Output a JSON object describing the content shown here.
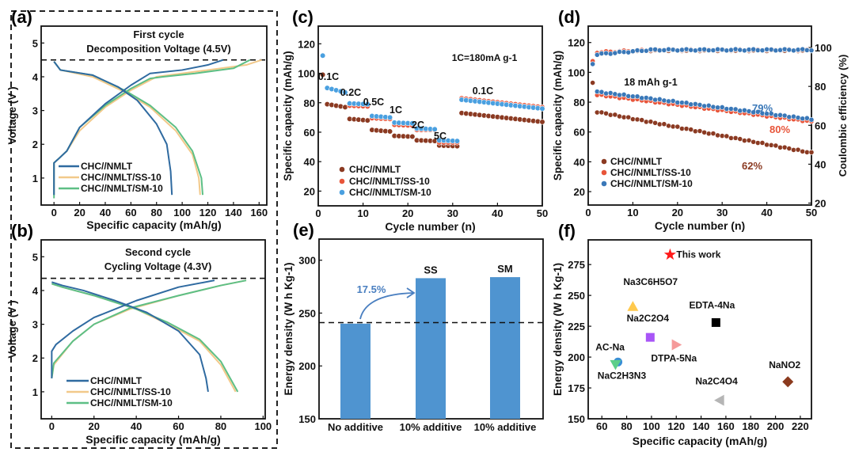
{
  "colors": {
    "nmlt_line": "#2f6aa0",
    "ss_line": "#f2c98a",
    "sm_line": "#5dbf85",
    "nmlt_dot": "#8b3a22",
    "ss_dot": "#e8553a",
    "sm_dot_c": "#4aa0e0",
    "sm_dot_d": "#3a78b8",
    "bar": "#4f94d0",
    "annot_blue": "#4a7fc0"
  },
  "chart_data": [
    {
      "panel": "(a)",
      "type": "line",
      "title": "First cycle",
      "subtitle": "Decomposition Voltage (4.5V)",
      "xlabel": "Specific capacity (mAh/g)",
      "ylabel": "Voltage (V )",
      "xlim": [
        -10,
        166
      ],
      "ylim": [
        0.2,
        5.5
      ],
      "xticks": [
        0,
        20,
        40,
        60,
        80,
        100,
        120,
        140,
        160
      ],
      "yticks": [
        1,
        2,
        3,
        4,
        5
      ],
      "ref_line": 4.5,
      "legend": [
        "CHC//NMLT",
        "CHC//NMLT/SS-10",
        "CHC//NMLT/SM-10"
      ],
      "series": [
        {
          "name": "CHC//NMLT",
          "charge": [
            [
              0,
              0.5
            ],
            [
              0,
              1.45
            ],
            [
              3,
              1.55
            ],
            [
              10,
              1.8
            ],
            [
              20,
              2.5
            ],
            [
              40,
              3.2
            ],
            [
              60,
              3.75
            ],
            [
              75,
              4.1
            ],
            [
              100,
              4.2
            ],
            [
              120,
              4.35
            ],
            [
              132,
              4.5
            ]
          ],
          "discharge": [
            [
              0,
              4.45
            ],
            [
              5,
              4.2
            ],
            [
              30,
              4.05
            ],
            [
              50,
              3.7
            ],
            [
              65,
              3.3
            ],
            [
              80,
              2.6
            ],
            [
              88,
              2.0
            ],
            [
              91,
              1.2
            ],
            [
              92,
              0.5
            ]
          ]
        },
        {
          "name": "CHC//NMLT/SS-10",
          "charge": [
            [
              0,
              0.5
            ],
            [
              0,
              1.45
            ],
            [
              3,
              1.55
            ],
            [
              10,
              1.8
            ],
            [
              20,
              2.4
            ],
            [
              40,
              3.1
            ],
            [
              60,
              3.6
            ],
            [
              80,
              4.0
            ],
            [
              120,
              4.2
            ],
            [
              150,
              4.35
            ],
            [
              162,
              4.5
            ]
          ],
          "discharge": [
            [
              0,
              4.45
            ],
            [
              5,
              4.2
            ],
            [
              30,
              4.0
            ],
            [
              55,
              3.55
            ],
            [
              75,
              3.1
            ],
            [
              95,
              2.4
            ],
            [
              108,
              1.7
            ],
            [
              113,
              1.0
            ],
            [
              114,
              0.5
            ]
          ]
        },
        {
          "name": "CHC//NMLT/SM-10",
          "charge": [
            [
              0,
              0.4
            ],
            [
              0,
              1.45
            ],
            [
              3,
              1.55
            ],
            [
              10,
              1.8
            ],
            [
              20,
              2.5
            ],
            [
              40,
              3.15
            ],
            [
              60,
              3.65
            ],
            [
              75,
              3.95
            ],
            [
              85,
              4.0
            ],
            [
              110,
              4.1
            ],
            [
              140,
              4.25
            ],
            [
              153,
              4.5
            ]
          ],
          "discharge": [
            [
              0,
              4.45
            ],
            [
              5,
              4.2
            ],
            [
              30,
              4.05
            ],
            [
              55,
              3.6
            ],
            [
              75,
              3.15
            ],
            [
              95,
              2.5
            ],
            [
              108,
              1.8
            ],
            [
              115,
              1.0
            ],
            [
              116,
              0.5
            ]
          ]
        }
      ]
    },
    {
      "panel": "(b)",
      "type": "line",
      "title": "Second cycle",
      "subtitle": "Cycling Voltage (4.3V)",
      "xlabel": "Specific capacity (mAh/g)",
      "ylabel": "Voltage (V )",
      "xlim": [
        -5,
        101
      ],
      "ylim": [
        0.2,
        5.5
      ],
      "xticks": [
        0,
        20,
        40,
        60,
        80,
        100
      ],
      "yticks": [
        1,
        2,
        3,
        4,
        5
      ],
      "ref_line": 4.36,
      "legend": [
        "CHC//NMLT",
        "CHC//NMLT/SS-10",
        "CHC//NMLT/SM-10"
      ],
      "series": [
        {
          "name": "CHC//NMLT",
          "charge": [
            [
              0,
              1.4
            ],
            [
              0,
              2.2
            ],
            [
              2,
              2.4
            ],
            [
              10,
              2.8
            ],
            [
              20,
              3.2
            ],
            [
              40,
              3.7
            ],
            [
              60,
              4.1
            ],
            [
              77,
              4.3
            ]
          ],
          "discharge": [
            [
              0,
              4.25
            ],
            [
              5,
              4.15
            ],
            [
              15,
              4.0
            ],
            [
              30,
              3.7
            ],
            [
              45,
              3.35
            ],
            [
              60,
              2.8
            ],
            [
              70,
              2.1
            ],
            [
              73,
              1.4
            ],
            [
              74,
              1.0
            ]
          ]
        },
        {
          "name": "CHC//NMLT/SS-10",
          "charge": [
            [
              0,
              1.4
            ],
            [
              1,
              1.8
            ],
            [
              10,
              2.5
            ],
            [
              20,
              3.0
            ],
            [
              37,
              3.45
            ],
            [
              60,
              3.85
            ],
            [
              80,
              4.15
            ],
            [
              92,
              4.3
            ]
          ],
          "discharge": [
            [
              0,
              4.2
            ],
            [
              5,
              4.1
            ],
            [
              20,
              3.85
            ],
            [
              40,
              3.45
            ],
            [
              55,
              3.0
            ],
            [
              70,
              2.5
            ],
            [
              80,
              1.8
            ],
            [
              87,
              1.0
            ]
          ]
        },
        {
          "name": "CHC//NMLT/SM-10",
          "charge": [
            [
              0,
              1.4
            ],
            [
              1,
              1.85
            ],
            [
              10,
              2.5
            ],
            [
              20,
              3.0
            ],
            [
              37,
              3.48
            ],
            [
              60,
              3.85
            ],
            [
              80,
              4.15
            ],
            [
              92,
              4.3
            ]
          ],
          "discharge": [
            [
              0,
              4.2
            ],
            [
              5,
              4.1
            ],
            [
              20,
              3.85
            ],
            [
              40,
              3.45
            ],
            [
              55,
              3.05
            ],
            [
              70,
              2.55
            ],
            [
              80,
              1.9
            ],
            [
              88,
              1.0
            ]
          ]
        }
      ]
    },
    {
      "panel": "(c)",
      "type": "scatter",
      "xlabel": "Cycle number (n)",
      "ylabel": "Specific capacity (mAh/g)",
      "xlim": [
        0,
        50
      ],
      "ylim": [
        10,
        132
      ],
      "xticks": [
        0,
        10,
        20,
        30,
        40,
        50
      ],
      "yticks": [
        20,
        40,
        60,
        80,
        100,
        120
      ],
      "annotation": "1C=180mA g-1",
      "rate_labels": [
        {
          "text": "0.1C"
        },
        {
          "text": "0.2C"
        },
        {
          "text": "0.5C"
        },
        {
          "text": "1C"
        },
        {
          "text": "2C"
        },
        {
          "text": "5C"
        },
        {
          "text": "0.1C"
        }
      ],
      "legend": [
        "CHC//NMLT",
        "CHC//NMLT/SS-10",
        "CHC//NMLT/SM-10"
      ],
      "series": [
        {
          "name": "CHC//NMLT",
          "segments": [
            [
              1,
              1,
              99,
              99
            ],
            [
              2,
              6,
              79,
              77
            ],
            [
              7,
              11,
              69,
              68
            ],
            [
              12,
              16,
              61.5,
              60.5
            ],
            [
              17,
              21,
              57.5,
              57
            ],
            [
              22,
              26,
              54.5,
              54
            ],
            [
              27,
              31,
              51,
              50.5
            ],
            [
              32,
              50,
              73,
              67
            ]
          ]
        },
        {
          "name": "CHC//NMLT/SS-10",
          "segments": [
            [
              1,
              1,
              112,
              112
            ],
            [
              2,
              6,
              90,
              87
            ],
            [
              7,
              11,
              78,
              77.5
            ],
            [
              12,
              16,
              69.5,
              69
            ],
            [
              17,
              21,
              65,
              64.5
            ],
            [
              22,
              26,
              61.5,
              61.5
            ],
            [
              27,
              31,
              53,
              53
            ],
            [
              32,
              50,
              83,
              77
            ]
          ]
        },
        {
          "name": "CHC//NMLT/SM-10",
          "segments": [
            [
              1,
              1,
              112,
              112
            ],
            [
              2,
              6,
              90,
              87
            ],
            [
              7,
              11,
              79.5,
              79
            ],
            [
              12,
              16,
              71,
              70
            ],
            [
              17,
              21,
              66.5,
              66
            ],
            [
              22,
              26,
              62.5,
              62
            ],
            [
              27,
              31,
              54.5,
              54
            ],
            [
              32,
              50,
              82,
              76
            ]
          ]
        }
      ]
    },
    {
      "panel": "(d)",
      "type": "scatter",
      "xlabel": "Cycle number (n)",
      "ylabel": "Specific capacity (mAh/g)",
      "ylabel_right": "Coulombic efficiency (%)",
      "xlim": [
        0,
        50
      ],
      "ylim": [
        11,
        131
      ],
      "ylim_right": [
        19,
        111
      ],
      "xticks": [
        0,
        10,
        20,
        30,
        40,
        50
      ],
      "yticks": [
        20,
        40,
        60,
        80,
        100,
        120
      ],
      "yticks_right": [
        20,
        40,
        60,
        80,
        100
      ],
      "annotation": "18 mAh g-1",
      "retention": [
        {
          "text": "79%",
          "series": "CHC//NMLT/SM-10"
        },
        {
          "text": "80%",
          "series": "CHC//NMLT/SS-10"
        },
        {
          "text": "62%",
          "series": "CHC//NMLT"
        }
      ],
      "legend": [
        "CHC//NMLT",
        "CHC//NMLT/SS-10",
        "CHC//NMLT/SM-10"
      ],
      "series": [
        {
          "name": "CHC//NMLT",
          "capacity": {
            "first": 93,
            "start": 73.5,
            "end": 46
          },
          "ce": {
            "first": 93,
            "start": 97.5,
            "end": 98.5
          }
        },
        {
          "name": "CHC//NMLT/SS-10",
          "capacity": {
            "first": 93,
            "start": 85,
            "end": 67
          },
          "ce": {
            "first": 93,
            "start": 97.5,
            "end": 98.8
          }
        },
        {
          "name": "CHC//NMLT/SM-10",
          "capacity": {
            "first": 93,
            "start": 87,
            "end": 68.5
          },
          "ce": {
            "first": 91.5,
            "start": 96.5,
            "end": 98.8
          }
        }
      ]
    },
    {
      "panel": "(e)",
      "type": "bar",
      "ylabel": "Energy density (W h Kg-1)",
      "ylim": [
        150,
        320
      ],
      "yticks": [
        150,
        200,
        250,
        300
      ],
      "categories": [
        "No additive",
        "10% additive",
        "10% additive"
      ],
      "values": [
        240,
        283,
        284
      ],
      "bar_labels": [
        "",
        "SS",
        "SM"
      ],
      "ref_line": 241,
      "increase_label": "17.5%"
    },
    {
      "panel": "(f)",
      "type": "scatter",
      "xlabel": "Specific capacity (mAh/g)",
      "ylabel": "Energy density (W h Kg-1)",
      "xlim": [
        49,
        229
      ],
      "ylim": [
        150,
        295
      ],
      "xticks": [
        60,
        80,
        100,
        120,
        140,
        160,
        180,
        200,
        220
      ],
      "yticks": [
        150,
        175,
        200,
        225,
        250,
        275
      ],
      "points": [
        {
          "label": "This work",
          "x": 115,
          "y": 283,
          "marker": "star",
          "color": "#ff1a1a"
        },
        {
          "label": "Na3C6H5O7",
          "x": 85,
          "y": 241,
          "marker": "triangle-up",
          "color": "#ffc94d"
        },
        {
          "label": "EDTA-4Na",
          "x": 152,
          "y": 228,
          "marker": "square",
          "color": "#000000"
        },
        {
          "label": "Na2C2O4",
          "x": 99,
          "y": 216,
          "marker": "square",
          "color": "#a855f7"
        },
        {
          "label": "DTPA-5Na",
          "x": 120,
          "y": 210,
          "marker": "triangle-right",
          "color": "#f59a9a"
        },
        {
          "label": "AC-Na",
          "x": 73,
          "y": 196,
          "marker": "circle",
          "color": "#3a8fd6"
        },
        {
          "label": "NaC2H3N3",
          "x": 71,
          "y": 194,
          "marker": "triangle-down",
          "color": "#5ccf8a"
        },
        {
          "label": "NaNO2",
          "x": 210,
          "y": 180,
          "marker": "diamond",
          "color": "#8b3a1e"
        },
        {
          "label": "Na2C4O4",
          "x": 155,
          "y": 165,
          "marker": "triangle-left",
          "color": "#b5b5b5"
        }
      ]
    }
  ]
}
